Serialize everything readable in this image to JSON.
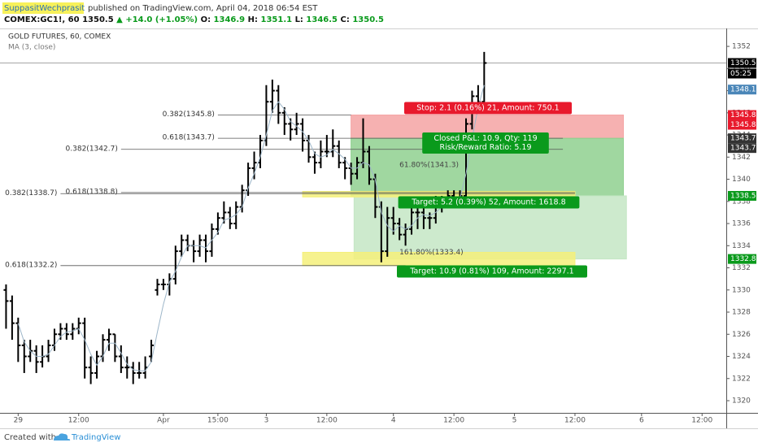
{
  "header": {
    "author": "SuppasitWechprasit",
    "published": "published on TradingView.com, April 04, 2018 06:54 EST",
    "symbol": "COMEX:GC1!, 60",
    "last": "1350.5",
    "change": "▲ +14.0 (+1.05%)",
    "quote": [
      [
        "O:",
        "1346.9"
      ],
      [
        "H:",
        "1351.1"
      ],
      [
        "L:",
        "1346.5"
      ],
      [
        "C:",
        "1350.5"
      ]
    ]
  },
  "chart_data": {
    "type": "ohlc",
    "title": "GOLD FUTURES, 60, COMEX",
    "color": "#000000",
    "ohlc": [
      [
        1330,
        1330.5,
        1326.5,
        1329
      ],
      [
        1329,
        1329.5,
        1325.5,
        1327
      ],
      [
        1327,
        1327.5,
        1323.5,
        1325
      ],
      [
        1325,
        1325.5,
        1322.5,
        1324
      ],
      [
        1324,
        1325.5,
        1323.5,
        1324.5
      ],
      [
        1324.5,
        1325,
        1322.5,
        1323.5
      ],
      [
        1323.5,
        1325,
        1323,
        1324
      ],
      [
        1324,
        1325.5,
        1323.5,
        1325
      ],
      [
        1325,
        1326.5,
        1324.5,
        1326
      ],
      [
        1326,
        1327,
        1325.5,
        1326.5
      ],
      [
        1326.5,
        1327,
        1325.5,
        1326
      ],
      [
        1326,
        1327,
        1325.5,
        1326.5
      ],
      [
        1326.5,
        1327.5,
        1326,
        1327
      ],
      [
        1327,
        1327.5,
        1322,
        1323
      ],
      [
        1323,
        1324,
        1321.5,
        1322.5
      ],
      [
        1322.5,
        1324.5,
        1322,
        1324
      ],
      [
        1324,
        1326,
        1323.5,
        1325.5
      ],
      [
        1325.5,
        1326.5,
        1324.5,
        1326
      ],
      [
        1326,
        1326,
        1323.5,
        1324
      ],
      [
        1324,
        1325,
        1322.5,
        1323
      ],
      [
        1323,
        1324,
        1322,
        1323
      ],
      [
        1323,
        1323.5,
        1321.5,
        1322.5
      ],
      [
        1322.5,
        1323.5,
        1322,
        1322.5
      ],
      [
        1322.5,
        1324,
        1322,
        1323
      ],
      [
        1324,
        1325.5,
        1323.5,
        1325
      ],
      [
        1330,
        1331,
        1329.5,
        1330.5
      ],
      [
        1330.5,
        1331,
        1330,
        1330.5
      ],
      [
        1330.5,
        1331.5,
        1329.5,
        1331
      ],
      [
        1331,
        1334,
        1330.5,
        1333.5
      ],
      [
        1333.5,
        1335,
        1333,
        1334.5
      ],
      [
        1334.5,
        1335,
        1333.5,
        1334
      ],
      [
        1334,
        1334.5,
        1332.5,
        1333.5
      ],
      [
        1333.5,
        1335,
        1333,
        1334.5
      ],
      [
        1334.5,
        1335,
        1332.5,
        1333.5
      ],
      [
        1333.5,
        1336,
        1333,
        1335.5
      ],
      [
        1335.5,
        1337,
        1335,
        1336.5
      ],
      [
        1336.5,
        1338,
        1336,
        1337
      ],
      [
        1337,
        1337.5,
        1335.5,
        1336
      ],
      [
        1336,
        1338,
        1335.5,
        1337.5
      ],
      [
        1337.5,
        1339.5,
        1337,
        1339
      ],
      [
        1339,
        1341.5,
        1338.5,
        1341
      ],
      [
        1341,
        1342.5,
        1340,
        1341.5
      ],
      [
        1341.5,
        1344,
        1341,
        1343.5
      ],
      [
        1343.5,
        1348.5,
        1343,
        1347
      ],
      [
        1347,
        1349,
        1346,
        1348
      ],
      [
        1348,
        1348.5,
        1345,
        1346
      ],
      [
        1346,
        1346.5,
        1344,
        1345
      ],
      [
        1345,
        1345.5,
        1343.5,
        1344.5
      ],
      [
        1344.5,
        1346,
        1344,
        1345
      ],
      [
        1345,
        1345.5,
        1342.5,
        1343.5
      ],
      [
        1343.5,
        1344,
        1341.5,
        1342
      ],
      [
        1342,
        1342.5,
        1340.5,
        1341.5
      ],
      [
        1341.5,
        1343.5,
        1341,
        1342.5
      ],
      [
        1342.5,
        1344,
        1342,
        1342.5
      ],
      [
        1342.5,
        1344.5,
        1342,
        1343
      ],
      [
        1343,
        1343.5,
        1341,
        1341.5
      ],
      [
        1341.5,
        1342,
        1340,
        1341
      ],
      [
        1341,
        1341.5,
        1339.5,
        1340.5
      ],
      [
        1340.5,
        1342,
        1340,
        1341.5
      ],
      [
        1341.5,
        1345.5,
        1341,
        1342.5
      ],
      [
        1342.5,
        1343,
        1339.5,
        1340
      ],
      [
        1340,
        1340.5,
        1336.5,
        1337.5
      ],
      [
        1337.5,
        1338,
        1332.5,
        1333.5
      ],
      [
        1333.5,
        1337.5,
        1333,
        1336.5
      ],
      [
        1336.5,
        1337.5,
        1335,
        1336
      ],
      [
        1336,
        1336.5,
        1334.5,
        1335
      ],
      [
        1335,
        1336,
        1334,
        1335.5
      ],
      [
        1335.5,
        1337.5,
        1335,
        1337
      ],
      [
        1337,
        1337.5,
        1335.5,
        1337
      ],
      [
        1337,
        1337.5,
        1335.5,
        1336.5
      ],
      [
        1336.5,
        1337,
        1335.5,
        1336.5
      ],
      [
        1336.5,
        1338.5,
        1336,
        1338
      ],
      [
        1338,
        1338.5,
        1337,
        1338
      ],
      [
        1338,
        1339,
        1337.5,
        1338.5
      ],
      [
        1338.5,
        1339,
        1337.5,
        1338
      ],
      [
        1338,
        1339,
        1337.5,
        1338.5
      ],
      [
        1338.5,
        1345.5,
        1338,
        1345
      ],
      [
        1345,
        1348,
        1344.5,
        1347.5
      ],
      [
        1347.5,
        1348.5,
        1346,
        1347
      ],
      [
        1347,
        1351.5,
        1346.5,
        1350.5
      ]
    ],
    "series": [
      {
        "name": "MA (3, close)",
        "color": "#9db6c9",
        "values": [
          null,
          null,
          1327,
          1325.3,
          1324.5,
          1324,
          1324,
          1324.2,
          1325,
          1325.8,
          1326.2,
          1326.3,
          1326.5,
          1325.5,
          1324.2,
          1323.2,
          1324,
          1325.2,
          1325.2,
          1324.3,
          1323.3,
          1322.8,
          1322.7,
          1322.7,
          1323.5,
          1326.2,
          1328.7,
          1330.7,
          1331.7,
          1333,
          1334,
          1334,
          1334,
          1333.8,
          1334.5,
          1335.2,
          1336.3,
          1336.5,
          1336.8,
          1337.5,
          1339.2,
          1340.5,
          1342,
          1344,
          1346.2,
          1347,
          1346.3,
          1345.2,
          1344.8,
          1344.3,
          1343.5,
          1342.3,
          1342,
          1342.2,
          1342.7,
          1342.3,
          1341.8,
          1341,
          1341,
          1341.5,
          1341.3,
          1340,
          1337,
          1335.8,
          1335.3,
          1335.8,
          1335.5,
          1335.8,
          1336.5,
          1336.8,
          1336.7,
          1337,
          1337.5,
          1338.2,
          1338.2,
          1338.3,
          1340.5,
          1343.7,
          1346.5,
          1348.5
        ]
      }
    ],
    "ylim": [
      1318.9,
      1353.4
    ],
    "yticks": [
      1320,
      1322,
      1324,
      1326,
      1328,
      1330,
      1332,
      1334,
      1336,
      1338,
      1340,
      1342,
      1344,
      1346,
      1348,
      1350,
      1352
    ],
    "xlim": [
      -1,
      119
    ],
    "xticks": [
      {
        "value": 2,
        "label": "29"
      },
      {
        "value": 12,
        "label": "12:00"
      },
      {
        "value": 26,
        "label": "Apr"
      },
      {
        "value": 35,
        "label": "15:00"
      },
      {
        "value": 43,
        "label": "3"
      },
      {
        "value": 53,
        "label": "12:00"
      },
      {
        "value": 64,
        "label": "4"
      },
      {
        "value": 74,
        "label": "12:00"
      },
      {
        "value": 84,
        "label": "5"
      },
      {
        "value": 94,
        "label": "12:00"
      },
      {
        "value": 105,
        "label": "6"
      },
      {
        "value": 115,
        "label": "12:00"
      }
    ],
    "grid": false,
    "boxes": [
      {
        "low": 1343.7,
        "high": 1345.8,
        "from": 57,
        "to": 102,
        "color": "#f4a3a3"
      },
      {
        "low": 1338.5,
        "high": 1343.7,
        "from": 57,
        "to": 102,
        "color": "#8fd08f"
      },
      {
        "low": 1332.8,
        "high": 1338.5,
        "from": 57.5,
        "to": 102.5,
        "color": "#c4e6c4"
      },
      {
        "low": 1338.4,
        "high": 1338.9,
        "from": 49,
        "to": 94,
        "color": "#f5f07a"
      },
      {
        "low": 1332.2,
        "high": 1333.4,
        "from": 49,
        "to": 94,
        "color": "#f5f07a"
      }
    ],
    "levels": [
      {
        "value": 1345.8,
        "label": "0.382(1345.8)",
        "from": 35,
        "to": 57
      },
      {
        "value": 1343.7,
        "label": "0.618(1343.7)",
        "from": 35,
        "to": 92
      },
      {
        "value": 1342.7,
        "label": "0.382(1342.7)",
        "from": 19,
        "to": 92
      },
      {
        "value": 1338.7,
        "label": "0.382(1338.7)",
        "from": 9,
        "to": 94
      },
      {
        "value": 1338.8,
        "label": "0.618(1338.8)",
        "from": 19,
        "to": 94
      },
      {
        "value": 1332.2,
        "label": "0.618(1332.2)",
        "from": 9,
        "to": 66
      }
    ],
    "fib_texts": [
      {
        "value": 1341.3,
        "x": 65,
        "label": "61.80%(1341.3)"
      },
      {
        "value": 1333.4,
        "x": 65,
        "label": "161.80%(1333.4)"
      }
    ],
    "trade_labels": [
      {
        "lines": [
          "Stop: 2.1 (0.16%) 21, Amount: 750.1"
        ],
        "color": "#e8192c"
      },
      {
        "lines": [
          "Closed P&L: 10.9, Qty: 119",
          "Risk/Reward Ratio: 5.19"
        ],
        "color": "#0a9a1c"
      },
      {
        "lines": [
          "Target: 5.2 (0.39%) 52, Amount: 1618.8"
        ],
        "color": "#0a9a1c"
      },
      {
        "lines": [
          "Target: 10.9 (0.81%) 109, Amount: 2297.1"
        ],
        "color": "#0a9a1c"
      }
    ],
    "price_tags": [
      {
        "value": 1350.5,
        "color": "#000000"
      },
      {
        "value": 1348.1,
        "color": "#4a86b8"
      },
      {
        "value": 1345.8,
        "color": "#e8192c"
      },
      {
        "value": 1345.8,
        "color": "#e8192c"
      },
      {
        "value": 1343.7,
        "color": "#333333"
      },
      {
        "value": 1343.7,
        "color": "#333333"
      },
      {
        "value": 1338.5,
        "color": "#0a9a1c"
      },
      {
        "value": 1332.8,
        "color": "#0a9a1c"
      }
    ],
    "countdown": "05:25"
  },
  "footer": {
    "created": "Created with",
    "brand": "TradingView"
  }
}
